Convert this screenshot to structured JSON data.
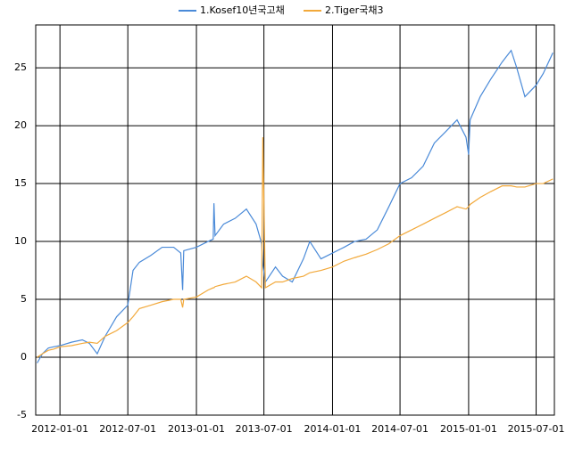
{
  "chart_data": {
    "type": "line",
    "x": [
      "2011-11-01",
      "2011-11-15",
      "2011-12-01",
      "2011-12-15",
      "2012-01-01",
      "2012-02-01",
      "2012-03-01",
      "2012-03-20",
      "2012-04-10",
      "2012-05-01",
      "2012-06-01",
      "2012-07-01",
      "2012-07-15",
      "2012-08-01",
      "2012-09-01",
      "2012-10-01",
      "2012-11-01",
      "2012-11-20",
      "2012-11-25",
      "2012-11-28",
      "2013-01-01",
      "2013-02-01",
      "2013-02-15",
      "2013-02-17",
      "2013-02-20",
      "2013-03-15",
      "2013-04-15",
      "2013-05-15",
      "2013-06-10",
      "2013-06-25",
      "2013-06-28",
      "2013-07-05",
      "2013-08-01",
      "2013-08-20",
      "2013-09-15",
      "2013-10-15",
      "2013-11-01",
      "2013-12-01",
      "2014-01-01",
      "2014-02-01",
      "2014-03-01",
      "2014-04-01",
      "2014-05-01",
      "2014-06-01",
      "2014-07-01",
      "2014-08-01",
      "2014-09-01",
      "2014-10-01",
      "2014-11-01",
      "2014-12-01",
      "2014-12-25",
      "2015-01-01",
      "2015-01-05",
      "2015-02-01",
      "2015-03-01",
      "2015-04-01",
      "2015-04-25",
      "2015-05-10",
      "2015-06-01",
      "2015-07-01",
      "2015-07-20",
      "2015-08-15"
    ],
    "series": [
      {
        "name": "1.Kosef10년국고채",
        "color": "#4a8ad8",
        "values": [
          -0.5,
          0.3,
          0.8,
          0.9,
          1.0,
          1.3,
          1.5,
          1.2,
          0.3,
          1.8,
          3.5,
          4.5,
          7.5,
          8.2,
          8.8,
          9.5,
          9.5,
          9.0,
          5.8,
          9.2,
          9.5,
          10.0,
          10.2,
          13.3,
          10.5,
          11.5,
          12.0,
          12.8,
          11.5,
          9.8,
          8.0,
          6.5,
          7.8,
          7.0,
          6.5,
          8.5,
          10.0,
          8.5,
          9.0,
          9.5,
          10.0,
          10.2,
          11.0,
          13.0,
          15.0,
          15.5,
          16.5,
          18.5,
          19.5,
          20.5,
          19.0,
          17.5,
          20.5,
          22.5,
          24.0,
          25.5,
          26.5,
          25.0,
          22.5,
          23.5,
          24.5,
          26.3
        ]
      },
      {
        "name": "2.Tiger국채3",
        "color": "#f2a93b",
        "values": [
          0.0,
          0.3,
          0.6,
          0.7,
          0.9,
          1.0,
          1.2,
          1.3,
          1.2,
          1.8,
          2.3,
          3.0,
          3.5,
          4.2,
          4.5,
          4.8,
          5.0,
          5.0,
          4.3,
          5.0,
          5.2,
          5.8,
          6.0,
          6.0,
          6.1,
          6.3,
          6.5,
          7.0,
          6.5,
          6.0,
          19.0,
          6.0,
          6.5,
          6.5,
          6.8,
          7.0,
          7.3,
          7.5,
          7.8,
          8.3,
          8.6,
          8.9,
          9.3,
          9.8,
          10.5,
          11.0,
          11.5,
          12.0,
          12.5,
          13.0,
          12.8,
          13.0,
          13.2,
          13.8,
          14.3,
          14.8,
          14.8,
          14.7,
          14.7,
          15.0,
          15.0,
          15.4
        ]
      }
    ],
    "xlim": [
      "2011-10-28",
      "2015-08-19"
    ],
    "xticks": [
      "2012-01-01",
      "2012-07-01",
      "2013-01-01",
      "2013-07-01",
      "2014-01-01",
      "2014-07-01",
      "2015-01-01",
      "2015-07-01"
    ],
    "ylim": [
      -5,
      28.7
    ],
    "yticks": [
      -5,
      0,
      5,
      10,
      15,
      20,
      25
    ],
    "grid": true,
    "legend": "top"
  }
}
